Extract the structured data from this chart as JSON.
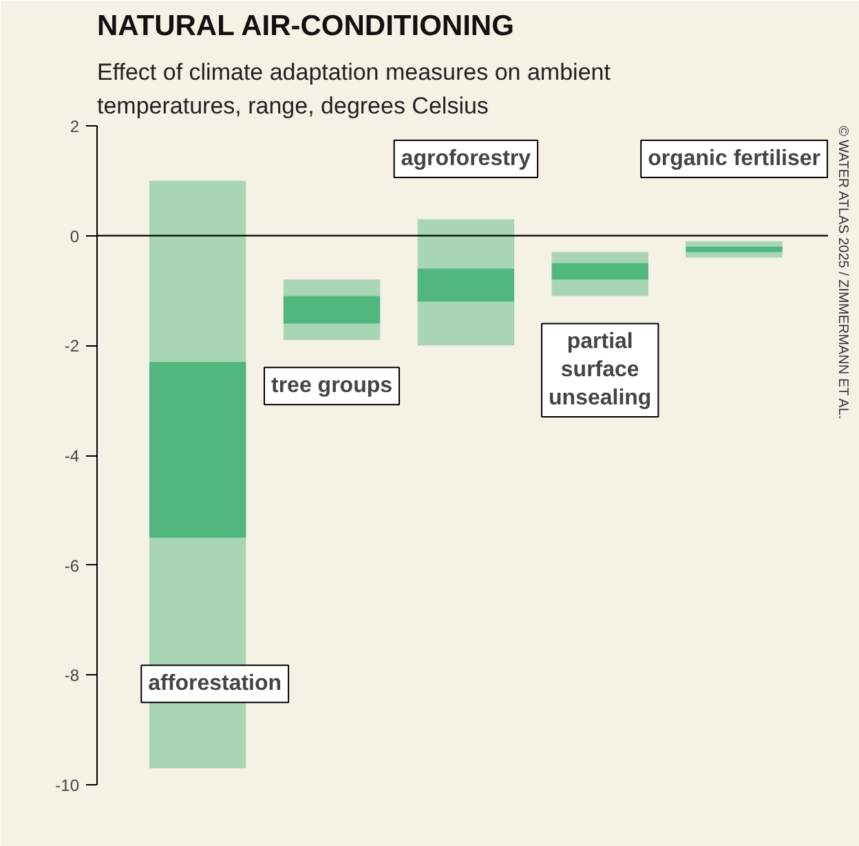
{
  "chart_data": {
    "type": "bar",
    "title": "NATURAL AIR-CONDITIONING",
    "subtitle": "Effect of climate adaptation measures on ambient temperatures, range, degrees Celsius",
    "categories": [
      "afforestation",
      "tree groups",
      "agroforestry",
      "partial surface unsealing",
      "organic fertiliser"
    ],
    "series": [
      {
        "color": "#a8d5b3",
        "base": [
          -9.7,
          -1.9,
          -2.0,
          -1.1,
          -0.4
        ],
        "values": [
          10.7,
          1.1,
          2.3,
          0.8,
          0.3
        ]
      },
      {
        "color": "#52b77f",
        "base": [
          -5.5,
          -1.6,
          -1.2,
          -0.8,
          -0.3
        ],
        "values": [
          3.2,
          0.5,
          0.6,
          0.3,
          0.1
        ]
      }
    ],
    "ylim": [
      -10,
      2
    ],
    "yticks": [
      -10,
      -8,
      -6,
      -4,
      -2,
      0,
      2
    ],
    "grid": false,
    "ref_lines": [
      {
        "axis": "y",
        "value": 0,
        "color": "#000000"
      }
    ],
    "annotations": [
      "© WATER ATLAS 2025 / ZIMMERMANN ET AL."
    ]
  }
}
